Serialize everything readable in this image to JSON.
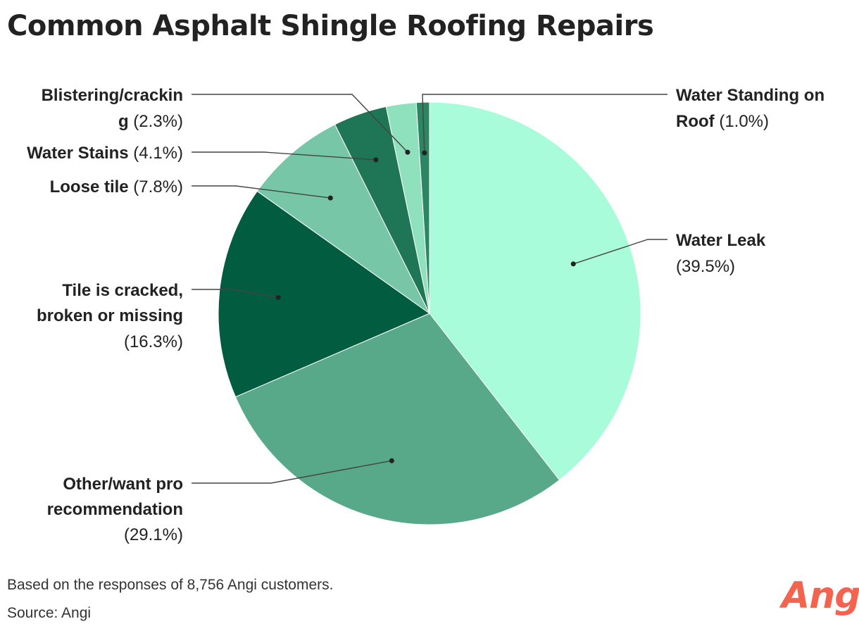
{
  "chart_data": {
    "type": "pie",
    "title": "Common Asphalt Shingle Roofing Repairs",
    "slices": [
      {
        "label": "Water Leak",
        "value": 39.5,
        "display": "(39.5%)",
        "color": "#a9fcd9"
      },
      {
        "label": "Other/want pro recommendation",
        "value": 29.1,
        "display": "(29.1%)",
        "color": "#57a98a"
      },
      {
        "label": "Tile is cracked, broken or missing",
        "value": 16.3,
        "display": "(16.3%)",
        "color": "#015c40"
      },
      {
        "label": "Loose tile",
        "value": 7.8,
        "display": "(7.8%)",
        "color": "#76c6a7"
      },
      {
        "label": "Water Stains",
        "value": 4.1,
        "display": "(4.1%)",
        "color": "#1f7656"
      },
      {
        "label": "Blistering/cracking",
        "value": 2.3,
        "display": "(2.3%)",
        "color": "#8fe0bd"
      },
      {
        "label": "Water Standing on Roof",
        "value": 1.0,
        "display": "(1.0%)",
        "color": "#2c8563"
      }
    ]
  },
  "note": "Based on the responses of 8,756 Angi customers.",
  "source": "Source: Angi",
  "logo_text": "Angi"
}
